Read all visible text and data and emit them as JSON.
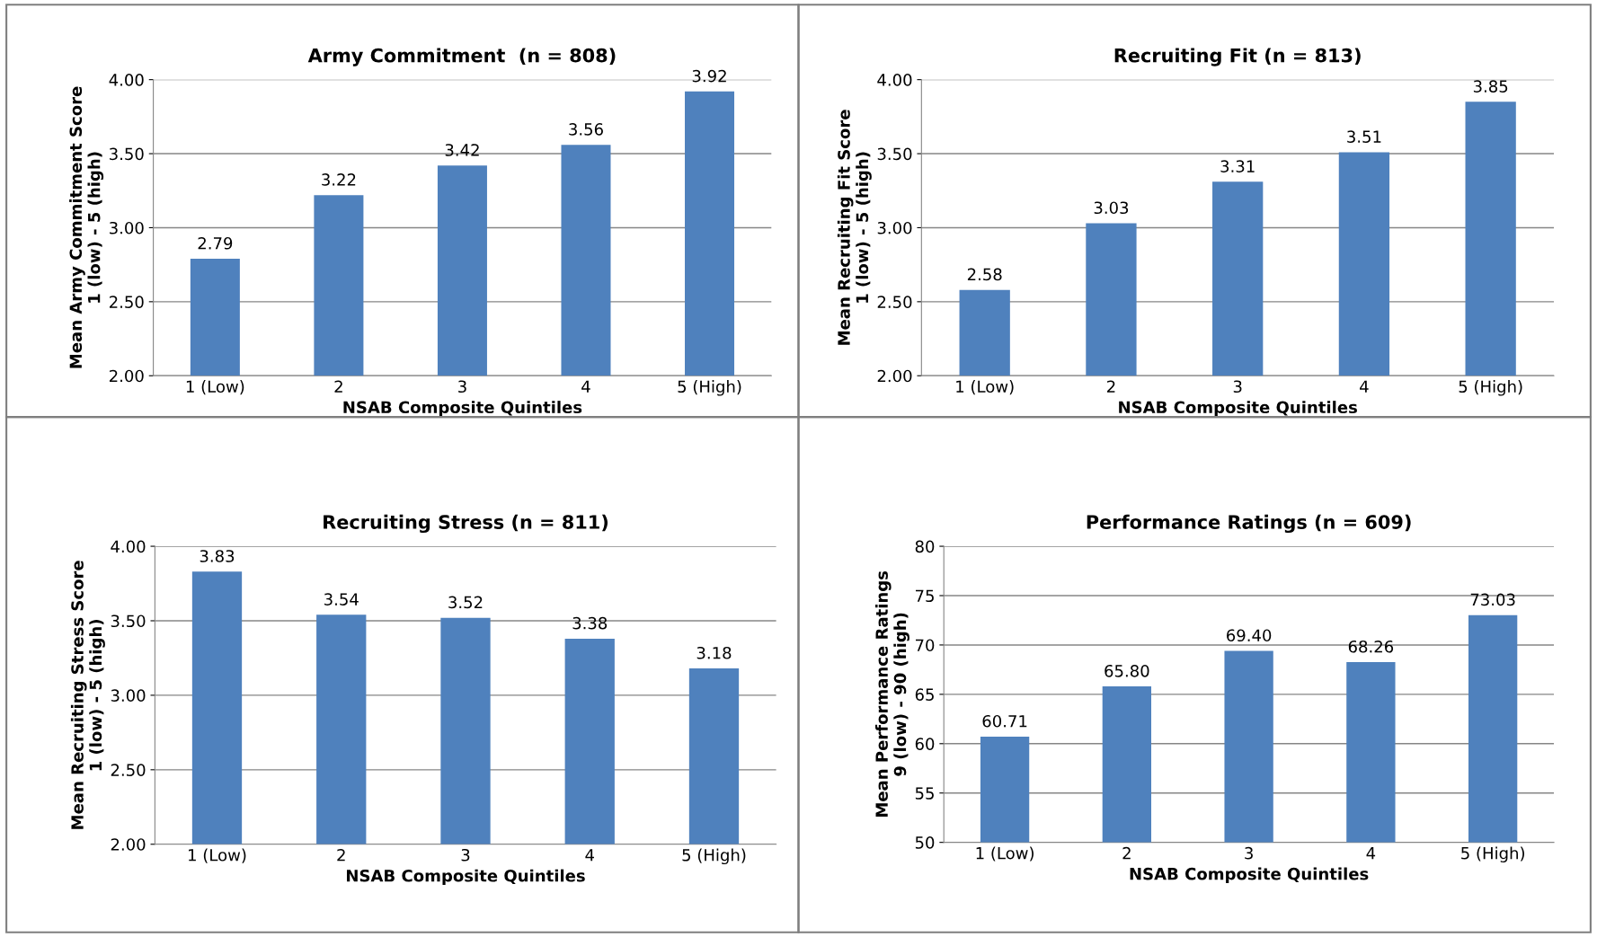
{
  "chart_data": [
    {
      "type": "bar",
      "title": "Army Commitment  (n = 808)",
      "xlabel": "NSAB Composite Quintiles",
      "ylabel": "Mean Army Commitment Score\n1 (low) - 5 (high)",
      "categories": [
        "1 (Low)",
        "2",
        "3",
        "4",
        "5 (High)"
      ],
      "values": [
        2.79,
        3.22,
        3.42,
        3.56,
        3.92
      ],
      "color": "#4f81bd",
      "ylim": [
        2,
        4
      ],
      "yticks": [
        {
          "value": 2,
          "label": "2.00"
        },
        {
          "value": 2.5,
          "label": "2.50"
        },
        {
          "value": 3,
          "label": "3.00"
        },
        {
          "value": 3.5,
          "label": "3.50"
        },
        {
          "value": 4,
          "label": "4.00"
        }
      ],
      "grid": "y",
      "data_labels": true
    },
    {
      "type": "bar",
      "title": "Recruiting Fit (n = 813)",
      "xlabel": "NSAB Composite Quintiles",
      "ylabel": "Mean Recruiting Fit Score\n1 (low) - 5 (high)",
      "categories": [
        "1 (Low)",
        "2",
        "3",
        "4",
        "5 (High)"
      ],
      "values": [
        2.58,
        3.03,
        3.31,
        3.51,
        3.85
      ],
      "color": "#4f81bd",
      "ylim": [
        2,
        4
      ],
      "yticks": [
        {
          "value": 2,
          "label": "2.00"
        },
        {
          "value": 2.5,
          "label": "2.50"
        },
        {
          "value": 3,
          "label": "3.00"
        },
        {
          "value": 3.5,
          "label": "3.50"
        },
        {
          "value": 4,
          "label": "4.00"
        }
      ],
      "grid": "y",
      "data_labels": true
    },
    {
      "type": "bar",
      "title": "Recruiting Stress (n = 811)",
      "xlabel": "NSAB Composite Quintiles",
      "ylabel": "Mean Recruiting Stress Score\n1 (low) - 5 (high)",
      "categories": [
        "1 (Low)",
        "2",
        "3",
        "4",
        "5 (High)"
      ],
      "values": [
        3.83,
        3.54,
        3.52,
        3.38,
        3.18
      ],
      "color": "#4f81bd",
      "ylim": [
        2,
        4
      ],
      "yticks": [
        {
          "value": 2,
          "label": "2.00"
        },
        {
          "value": 2.5,
          "label": "2.50"
        },
        {
          "value": 3,
          "label": "3.00"
        },
        {
          "value": 3.5,
          "label": "3.50"
        },
        {
          "value": 4,
          "label": "4.00"
        }
      ],
      "grid": "y",
      "data_labels": true
    },
    {
      "type": "bar",
      "title": "Performance Ratings (n = 609)",
      "xlabel": "NSAB Composite Quintiles",
      "ylabel": "Mean Performance Ratings\n9 (low) - 90 (high)",
      "categories": [
        "1 (Low)",
        "2",
        "3",
        "4",
        "5 (High)"
      ],
      "values": [
        60.71,
        65.8,
        69.4,
        68.26,
        73.03
      ],
      "value_labels": [
        "60.71",
        "65.80",
        "69.40",
        "68.26",
        "73.03"
      ],
      "color": "#4f81bd",
      "ylim": [
        50,
        80
      ],
      "yticks": [
        50,
        55,
        60,
        65,
        70,
        75,
        80
      ],
      "grid": "y"
    }
  ]
}
